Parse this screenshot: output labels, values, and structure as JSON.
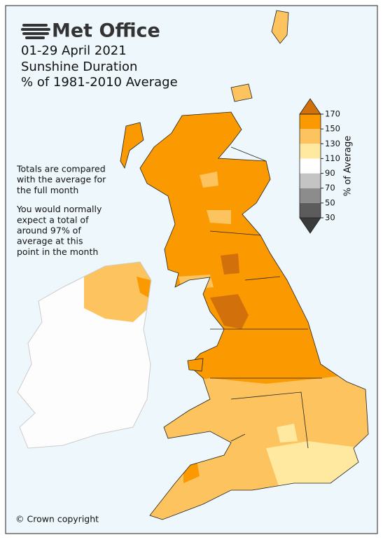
{
  "logo": "Met Office",
  "title": [
    "01-29 April 2021",
    "Sunshine Duration",
    "% of 1981-2010 Average"
  ],
  "notes": [
    [
      "Totals are compared",
      "with the average for",
      "the full month"
    ],
    [
      "You would normally",
      "expect a total of",
      "around 97% of",
      "average at this",
      "point in the month"
    ]
  ],
  "copyright": "© Crown copyright",
  "colorbar": {
    "label": "% of Average",
    "ticks": [
      30,
      50,
      70,
      90,
      110,
      130,
      150,
      170
    ],
    "colors": [
      "#3a3a3a",
      "#5c5c5c",
      "#8c8c8c",
      "#c4c4c4",
      "#ffffff",
      "#ffe9a0",
      "#fdc35e",
      "#fb9a00",
      "#d2700c"
    ]
  }
}
